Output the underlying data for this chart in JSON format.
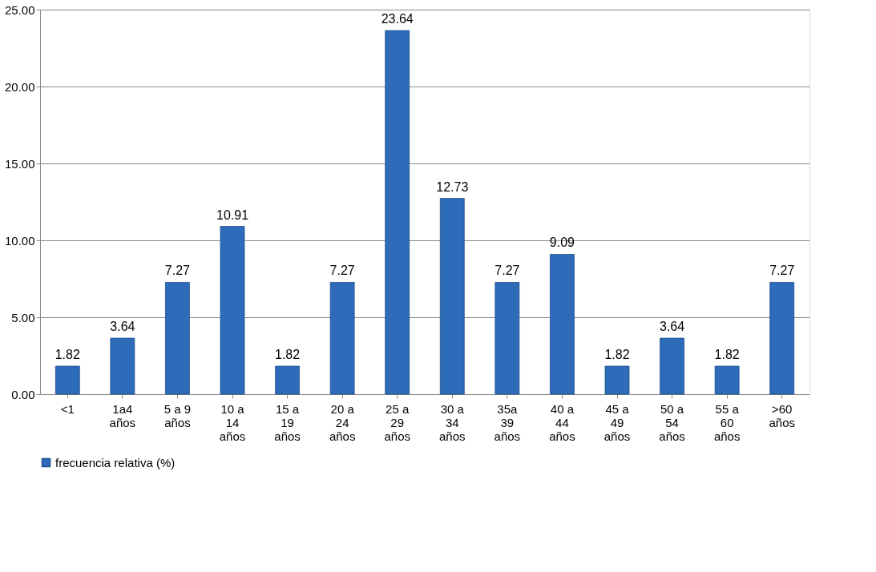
{
  "chart_data": {
    "type": "bar",
    "categories": [
      "<1",
      "1a4 años",
      "5 a 9 años",
      "10 a 14 años",
      "15 a 19 años",
      "20 a 24 años",
      "25 a 29 años",
      "30 a 34 años",
      "35a 39 años",
      "40 a 44 años",
      "45 a 49 años",
      "50 a 54 años",
      "55 a 60 años",
      ">60 años"
    ],
    "series": [
      {
        "name": "frecuencia relativa (%)",
        "color": "#2e6bb8",
        "values": [
          1.82,
          3.64,
          7.27,
          10.91,
          1.82,
          7.27,
          23.64,
          12.73,
          7.27,
          9.09,
          1.82,
          3.64,
          1.82,
          7.27
        ]
      }
    ],
    "ylim": [
      0,
      25
    ],
    "yticks": [
      {
        "value": 0,
        "label": "0.00"
      },
      {
        "value": 5,
        "label": "5.00"
      },
      {
        "value": 10,
        "label": "10.00"
      },
      {
        "value": 15,
        "label": "15.00"
      },
      {
        "value": 20,
        "label": "20.00"
      },
      {
        "value": 25,
        "label": "25.00"
      }
    ],
    "grid": "y",
    "legend": "bottom",
    "data_labels": true
  }
}
